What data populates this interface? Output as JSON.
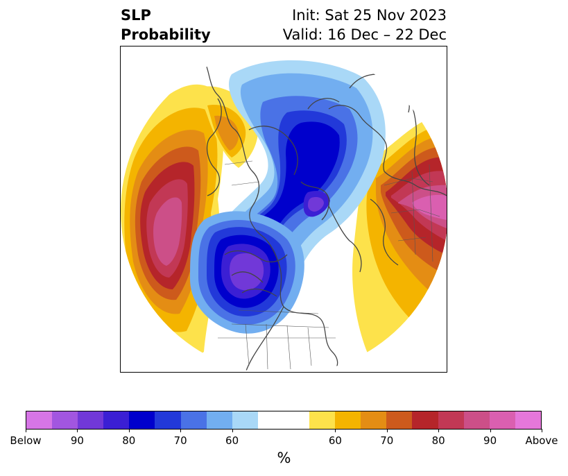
{
  "header": {
    "variable": "SLP",
    "metric": "Probability",
    "init": "Init: Sat 25 Nov 2023",
    "valid": "Valid: 16 Dec – 22 Dec"
  },
  "colorbar": {
    "below_colors": [
      "#d675e6",
      "#a256e0",
      "#7138d8",
      "#3b1fd4",
      "#0000cc",
      "#2239d9",
      "#4a72e6",
      "#72aef0",
      "#a9d8f7"
    ],
    "neutral_color": "#ffffff",
    "above_colors": [
      "#fde24b",
      "#f4b400",
      "#e48d14",
      "#cd5a1c",
      "#b5252a",
      "#c23855",
      "#cc4f88",
      "#da5fb0",
      "#e577da"
    ],
    "tick_labels": [
      "Below",
      "90",
      "80",
      "70",
      "60",
      "60",
      "70",
      "80",
      "90",
      "Above"
    ],
    "unit": "%"
  }
}
